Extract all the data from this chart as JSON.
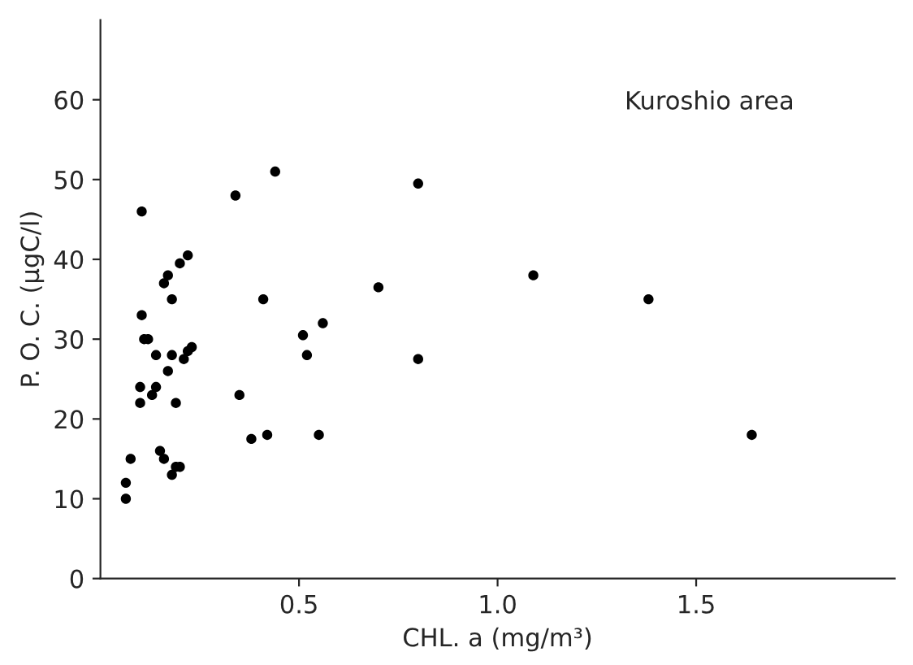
{
  "chart_data": {
    "type": "scatter",
    "xlabel": "CHL. a (mg/m³)",
    "ylabel": "P. O. C. (µgC/l)",
    "annotations": [
      "Kuroshio area"
    ],
    "x": [
      0.064,
      0.064,
      0.076,
      0.104,
      0.104,
      0.11,
      0.12,
      0.14,
      0.1,
      0.1,
      0.13,
      0.14,
      0.17,
      0.16,
      0.18,
      0.17,
      0.18,
      0.19,
      0.15,
      0.16,
      0.18,
      0.19,
      0.2,
      0.2,
      0.22,
      0.21,
      0.22,
      0.23,
      0.34,
      0.44,
      0.35,
      0.38,
      0.42,
      0.41,
      0.51,
      0.52,
      0.56,
      0.55,
      0.7,
      0.8,
      0.8,
      1.09,
      1.38,
      1.64
    ],
    "values": [
      10,
      12,
      15,
      46,
      33,
      30,
      30,
      28,
      24,
      22,
      23,
      24,
      38,
      37,
      35,
      26,
      28,
      22,
      16,
      15,
      13,
      14,
      14,
      39.5,
      40.5,
      27.5,
      28.5,
      29,
      48,
      51,
      23,
      17.5,
      18,
      35,
      30.5,
      28,
      32,
      18,
      36.5,
      49.5,
      27.5,
      38,
      35,
      18
    ],
    "color": "#000000",
    "marker": "circle",
    "xlim": [
      0,
      2.0
    ],
    "ylim": [
      0,
      70
    ],
    "xticks": [
      {
        "value": 0.5,
        "label": "0.5"
      },
      {
        "value": 1.0,
        "label": "1.0"
      },
      {
        "value": 1.5,
        "label": "1.5"
      }
    ],
    "yticks": [
      0,
      10,
      20,
      30,
      40,
      50,
      60
    ],
    "grid": false
  }
}
